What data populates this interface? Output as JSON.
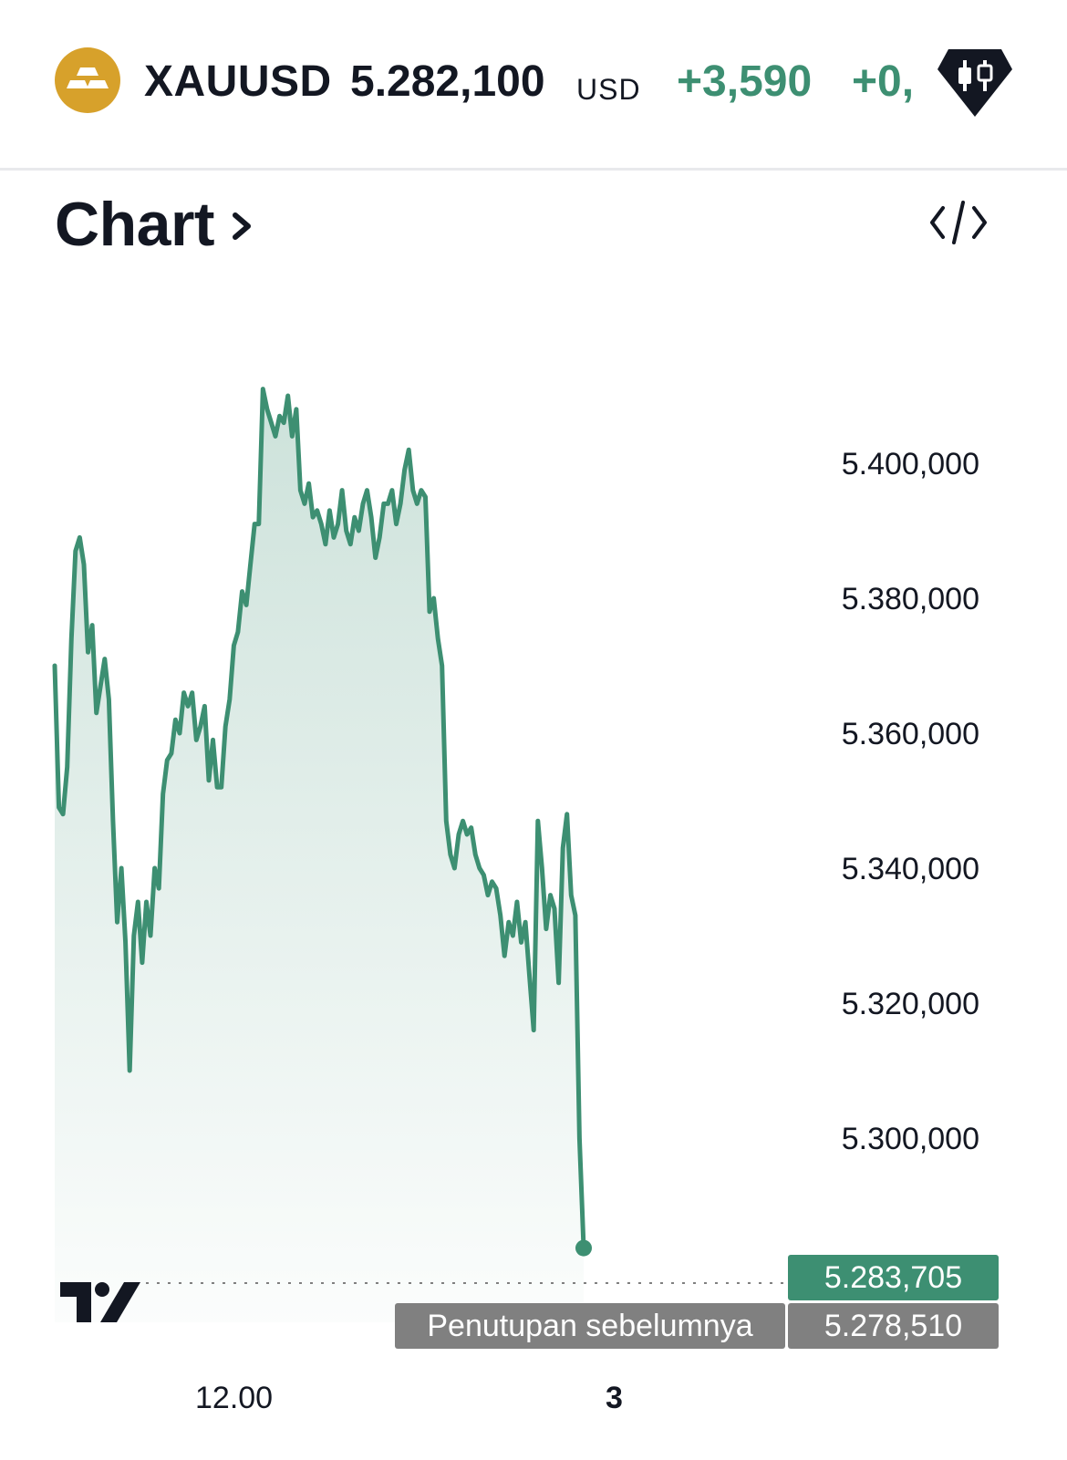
{
  "header": {
    "symbol": "XAUUSD",
    "price": "5.282,100",
    "currency": "USD",
    "change_abs": "+3,590",
    "change_pct": "+0,",
    "logo_icon": "gold-bars-icon",
    "badge_icon": "candlestick-icon",
    "logo_color": "#d7a12b",
    "positive_color": "#3d8f72"
  },
  "section": {
    "title": "Chart",
    "chevron_icon": "chevron-right-icon",
    "embed_icon": "code-embed-icon"
  },
  "chart_data": {
    "type": "area",
    "title": "",
    "xlabel": "",
    "ylabel": "",
    "grid": false,
    "x_tick_labels": [
      {
        "index": 50,
        "label": "12.00"
      },
      {
        "index": 152,
        "label": "3"
      }
    ],
    "y_ticks": [
      5300000,
      5320000,
      5340000,
      5360000,
      5380000,
      5400000
    ],
    "y_tick_labels": [
      "5.300,000",
      "5.320,000",
      "5.340,000",
      "5.360,000",
      "5.380,000",
      "5.400,000"
    ],
    "ylim": [
      5273000,
      5418000
    ],
    "line_color": "#3d8f72",
    "last_value": 5283705,
    "last_value_label": "5.283,705",
    "previous_close": 5278510,
    "previous_close_label": "5.278,510",
    "previous_close_text": "Penutupan sebelumnya",
    "series": [
      {
        "values": [
          5370000,
          5349000,
          5348000,
          5355000,
          5374000,
          5387000,
          5389000,
          5385000,
          5372000,
          5376000,
          5363000,
          5367000,
          5371000,
          5365000,
          5347000,
          5332000,
          5340000,
          5329000,
          5310000,
          5330000,
          5335000,
          5326000,
          5335000,
          5330000,
          5340000,
          5337000,
          5351000,
          5356000,
          5357000,
          5362000,
          5360000,
          5366000,
          5364000,
          5366000,
          5359000,
          5361000,
          5364000,
          5353000,
          5359000,
          5352000,
          5352000,
          5361000,
          5365000,
          5373000,
          5375000,
          5381000,
          5379000,
          5385000,
          5391000,
          5391000,
          5411000,
          5408000,
          5406000,
          5404000,
          5407000,
          5406000,
          5410000,
          5404000,
          5408000,
          5396000,
          5394000,
          5397000,
          5392000,
          5393000,
          5391000,
          5388000,
          5393000,
          5389000,
          5391000,
          5396000,
          5390000,
          5388000,
          5392000,
          5390000,
          5394000,
          5396000,
          5392000,
          5386000,
          5389000,
          5394000,
          5394000,
          5396000,
          5391000,
          5394000,
          5399000,
          5402000,
          5396000,
          5394000,
          5396000,
          5395000,
          5378000,
          5380000,
          5374000,
          5370000,
          5347000,
          5342000,
          5340000,
          5345000,
          5347000,
          5345000,
          5346000,
          5342000,
          5340000,
          5339000,
          5336000,
          5338000,
          5337000,
          5333000,
          5327000,
          5332000,
          5330000,
          5335000,
          5329000,
          5332000,
          5324000,
          5316000,
          5347000,
          5340000,
          5331000,
          5336000,
          5334000,
          5323000,
          5343000,
          5348000,
          5336000,
          5333000,
          5300000,
          5283705
        ]
      }
    ]
  },
  "branding": {
    "logo_icon": "tradingview-logo"
  }
}
